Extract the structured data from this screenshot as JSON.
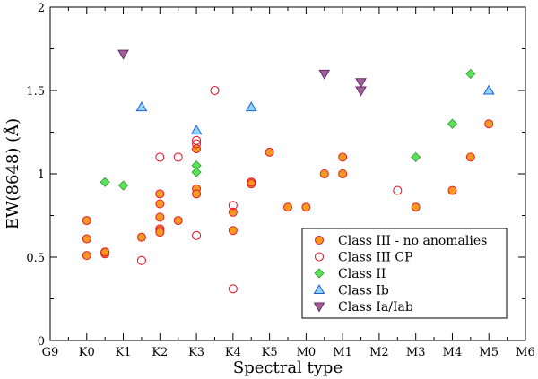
{
  "chart_data": {
    "type": "scatter",
    "title": "",
    "xlabel": "Spectral type",
    "ylabel": "EW(8648) (Å)",
    "xlim": [
      0,
      13
    ],
    "ylim": [
      0,
      2
    ],
    "x_tick_labels": [
      "G9",
      "K0",
      "K1",
      "K2",
      "K3",
      "K4",
      "K5",
      "M0",
      "M1",
      "M2",
      "M3",
      "M4",
      "M5",
      "M6"
    ],
    "y_ticks": [
      0,
      0.5,
      1,
      1.5,
      2
    ],
    "y_tick_labels": [
      "0",
      "0.5",
      "1",
      "1.5",
      "2"
    ],
    "legend_position": "bottom-right",
    "grid": false,
    "series": [
      {
        "name": "Class III - no anomalies",
        "marker": "circle-filled",
        "color": "#f59a1e",
        "edge_color": "#e8192c",
        "points": [
          [
            1,
            0.72
          ],
          [
            1,
            0.61
          ],
          [
            1,
            0.51
          ],
          [
            1.5,
            0.52
          ],
          [
            1.5,
            0.53
          ],
          [
            2.5,
            0.62
          ],
          [
            3,
            0.88
          ],
          [
            3,
            0.82
          ],
          [
            3,
            0.74
          ],
          [
            3,
            0.67
          ],
          [
            3,
            0.66
          ],
          [
            3,
            0.65
          ],
          [
            3.5,
            0.72
          ],
          [
            4,
            1.15
          ],
          [
            4,
            0.91
          ],
          [
            4,
            0.88
          ],
          [
            5,
            0.77
          ],
          [
            5,
            0.66
          ],
          [
            5.5,
            0.95
          ],
          [
            5.5,
            0.94
          ],
          [
            6,
            1.13
          ],
          [
            6.5,
            0.8
          ],
          [
            7,
            0.8
          ],
          [
            7.5,
            1.0
          ],
          [
            8,
            1.1
          ],
          [
            8,
            1.0
          ],
          [
            10,
            0.8
          ],
          [
            11,
            0.9
          ],
          [
            11.5,
            1.1
          ],
          [
            12,
            1.3
          ]
        ]
      },
      {
        "name": "Class III CP",
        "marker": "circle-open",
        "color": "#e8192c",
        "points": [
          [
            1.5,
            0.53
          ],
          [
            2.5,
            0.48
          ],
          [
            3,
            1.1
          ],
          [
            3.5,
            1.1
          ],
          [
            4,
            1.2
          ],
          [
            4,
            1.18
          ],
          [
            4,
            0.63
          ],
          [
            4.5,
            1.5
          ],
          [
            5,
            0.81
          ],
          [
            5,
            0.31
          ],
          [
            5.5,
            0.95
          ],
          [
            9.5,
            0.9
          ]
        ]
      },
      {
        "name": "Class II",
        "marker": "diamond",
        "color": "#5de05a",
        "edge_color": "#2a9a2a",
        "points": [
          [
            1.5,
            0.95
          ],
          [
            2,
            0.93
          ],
          [
            4,
            1.05
          ],
          [
            4,
            1.01
          ],
          [
            10,
            1.1
          ],
          [
            11,
            1.3
          ],
          [
            11.5,
            1.6
          ]
        ]
      },
      {
        "name": "Class Ib",
        "marker": "triangle-up",
        "color": "#8fd3f5",
        "edge_color": "#1f5fd6",
        "points": [
          [
            2.5,
            1.4
          ],
          [
            4,
            1.26
          ],
          [
            5.5,
            1.4
          ],
          [
            12,
            1.5
          ]
        ]
      },
      {
        "name": "Class Ia/Iab",
        "marker": "triangle-down",
        "color": "#a0609a",
        "edge_color": "#6a2a66",
        "points": [
          [
            2,
            1.72
          ],
          [
            7.5,
            1.6
          ],
          [
            8.5,
            1.55
          ],
          [
            8.5,
            1.5
          ]
        ]
      }
    ]
  }
}
